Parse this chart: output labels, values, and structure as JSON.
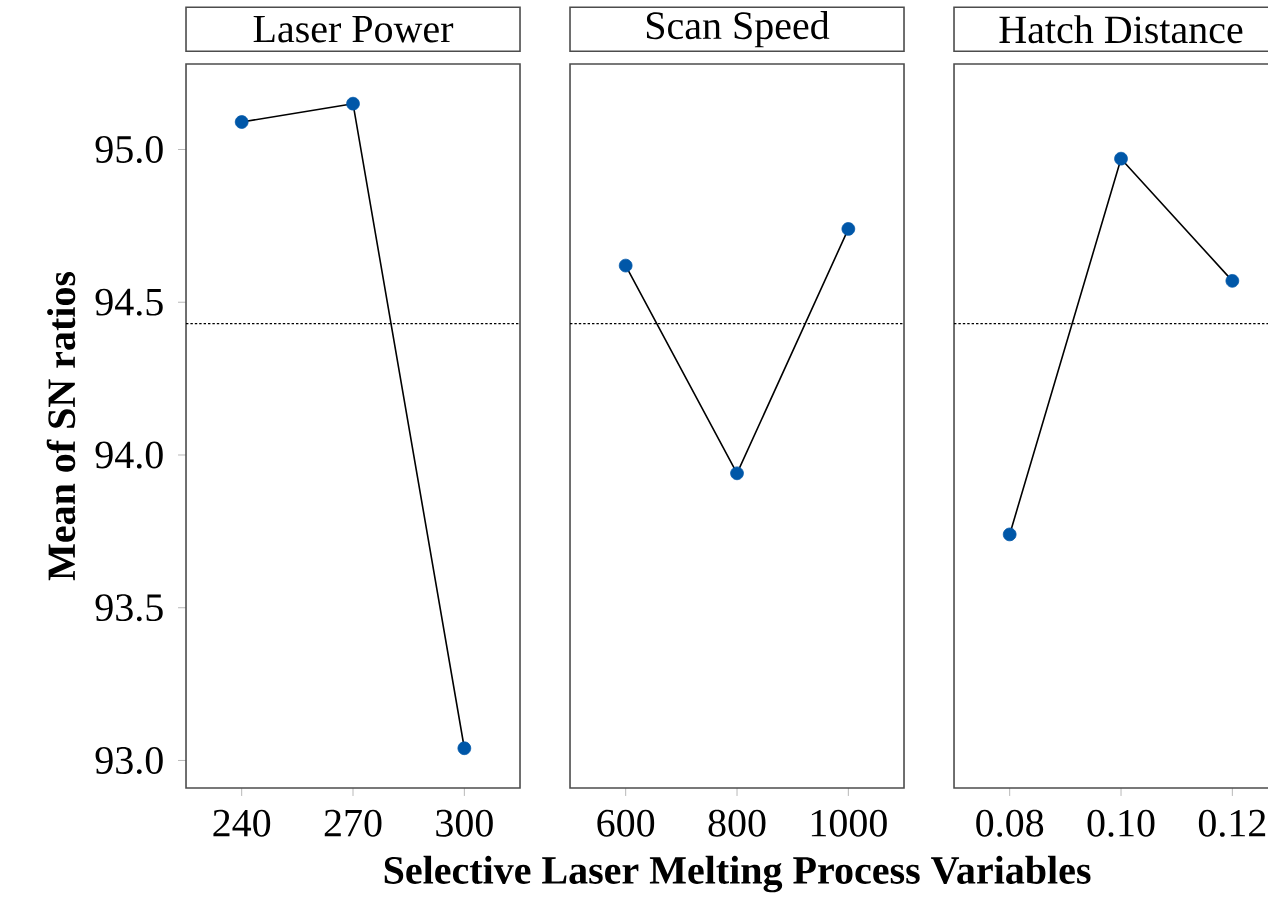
{
  "chart_data": [
    {
      "type": "line",
      "title": "Laser Power",
      "ylabel": "Mean of SN ratios",
      "x": [
        240,
        270,
        300
      ],
      "series": [
        {
          "color": "#0057a8",
          "values": [
            95.09,
            95.15,
            93.04
          ]
        }
      ],
      "xlim": [
        225,
        315
      ],
      "xticks": [
        240,
        270,
        300
      ],
      "ylim": [
        92.91,
        95.28
      ],
      "yticks": [
        {
          "value": 93,
          "label": "93.0"
        },
        {
          "value": 93.5,
          "label": "93.5"
        },
        {
          "value": 94,
          "label": "94.0"
        },
        {
          "value": 94.5,
          "label": "94.5"
        },
        {
          "value": 95,
          "label": "95.0"
        }
      ],
      "ref_lines": [
        {
          "axis": "y",
          "value": 94.43,
          "line_style": "dotted"
        }
      ],
      "marker": "circle",
      "line_style": "solid"
    },
    {
      "type": "line",
      "title": "Scan Speed",
      "xlabel": "**Selective Laser Melting Process Variables**",
      "x": [
        600,
        800,
        1000
      ],
      "series": [
        {
          "color": "#0057a8",
          "values": [
            94.62,
            93.94,
            94.74
          ]
        }
      ],
      "xlim": [
        500,
        1100
      ],
      "xticks": [
        600,
        800,
        1000
      ],
      "ylim": [
        92.91,
        95.28
      ],
      "tick_labels": "x",
      "ref_lines": [
        {
          "axis": "y",
          "value": 94.43,
          "line_style": "dotted"
        }
      ],
      "marker": "circle",
      "line_style": "solid"
    },
    {
      "type": "line",
      "title": "Hatch Distance",
      "x": [
        0.08,
        0.1,
        0.12
      ],
      "series": [
        {
          "color": "#0057a8",
          "values": [
            93.74,
            94.97,
            94.57
          ]
        }
      ],
      "xlim": [
        0.07,
        0.13
      ],
      "xticks": [
        0.08,
        {
          "value": 0.1,
          "label": "0.10"
        },
        0.12
      ],
      "ylim": [
        92.91,
        95.28
      ],
      "tick_labels": "x",
      "ref_lines": [
        {
          "axis": "y",
          "value": 94.43,
          "line_style": "dotted"
        }
      ],
      "marker": "circle",
      "line_style": "solid"
    }
  ]
}
